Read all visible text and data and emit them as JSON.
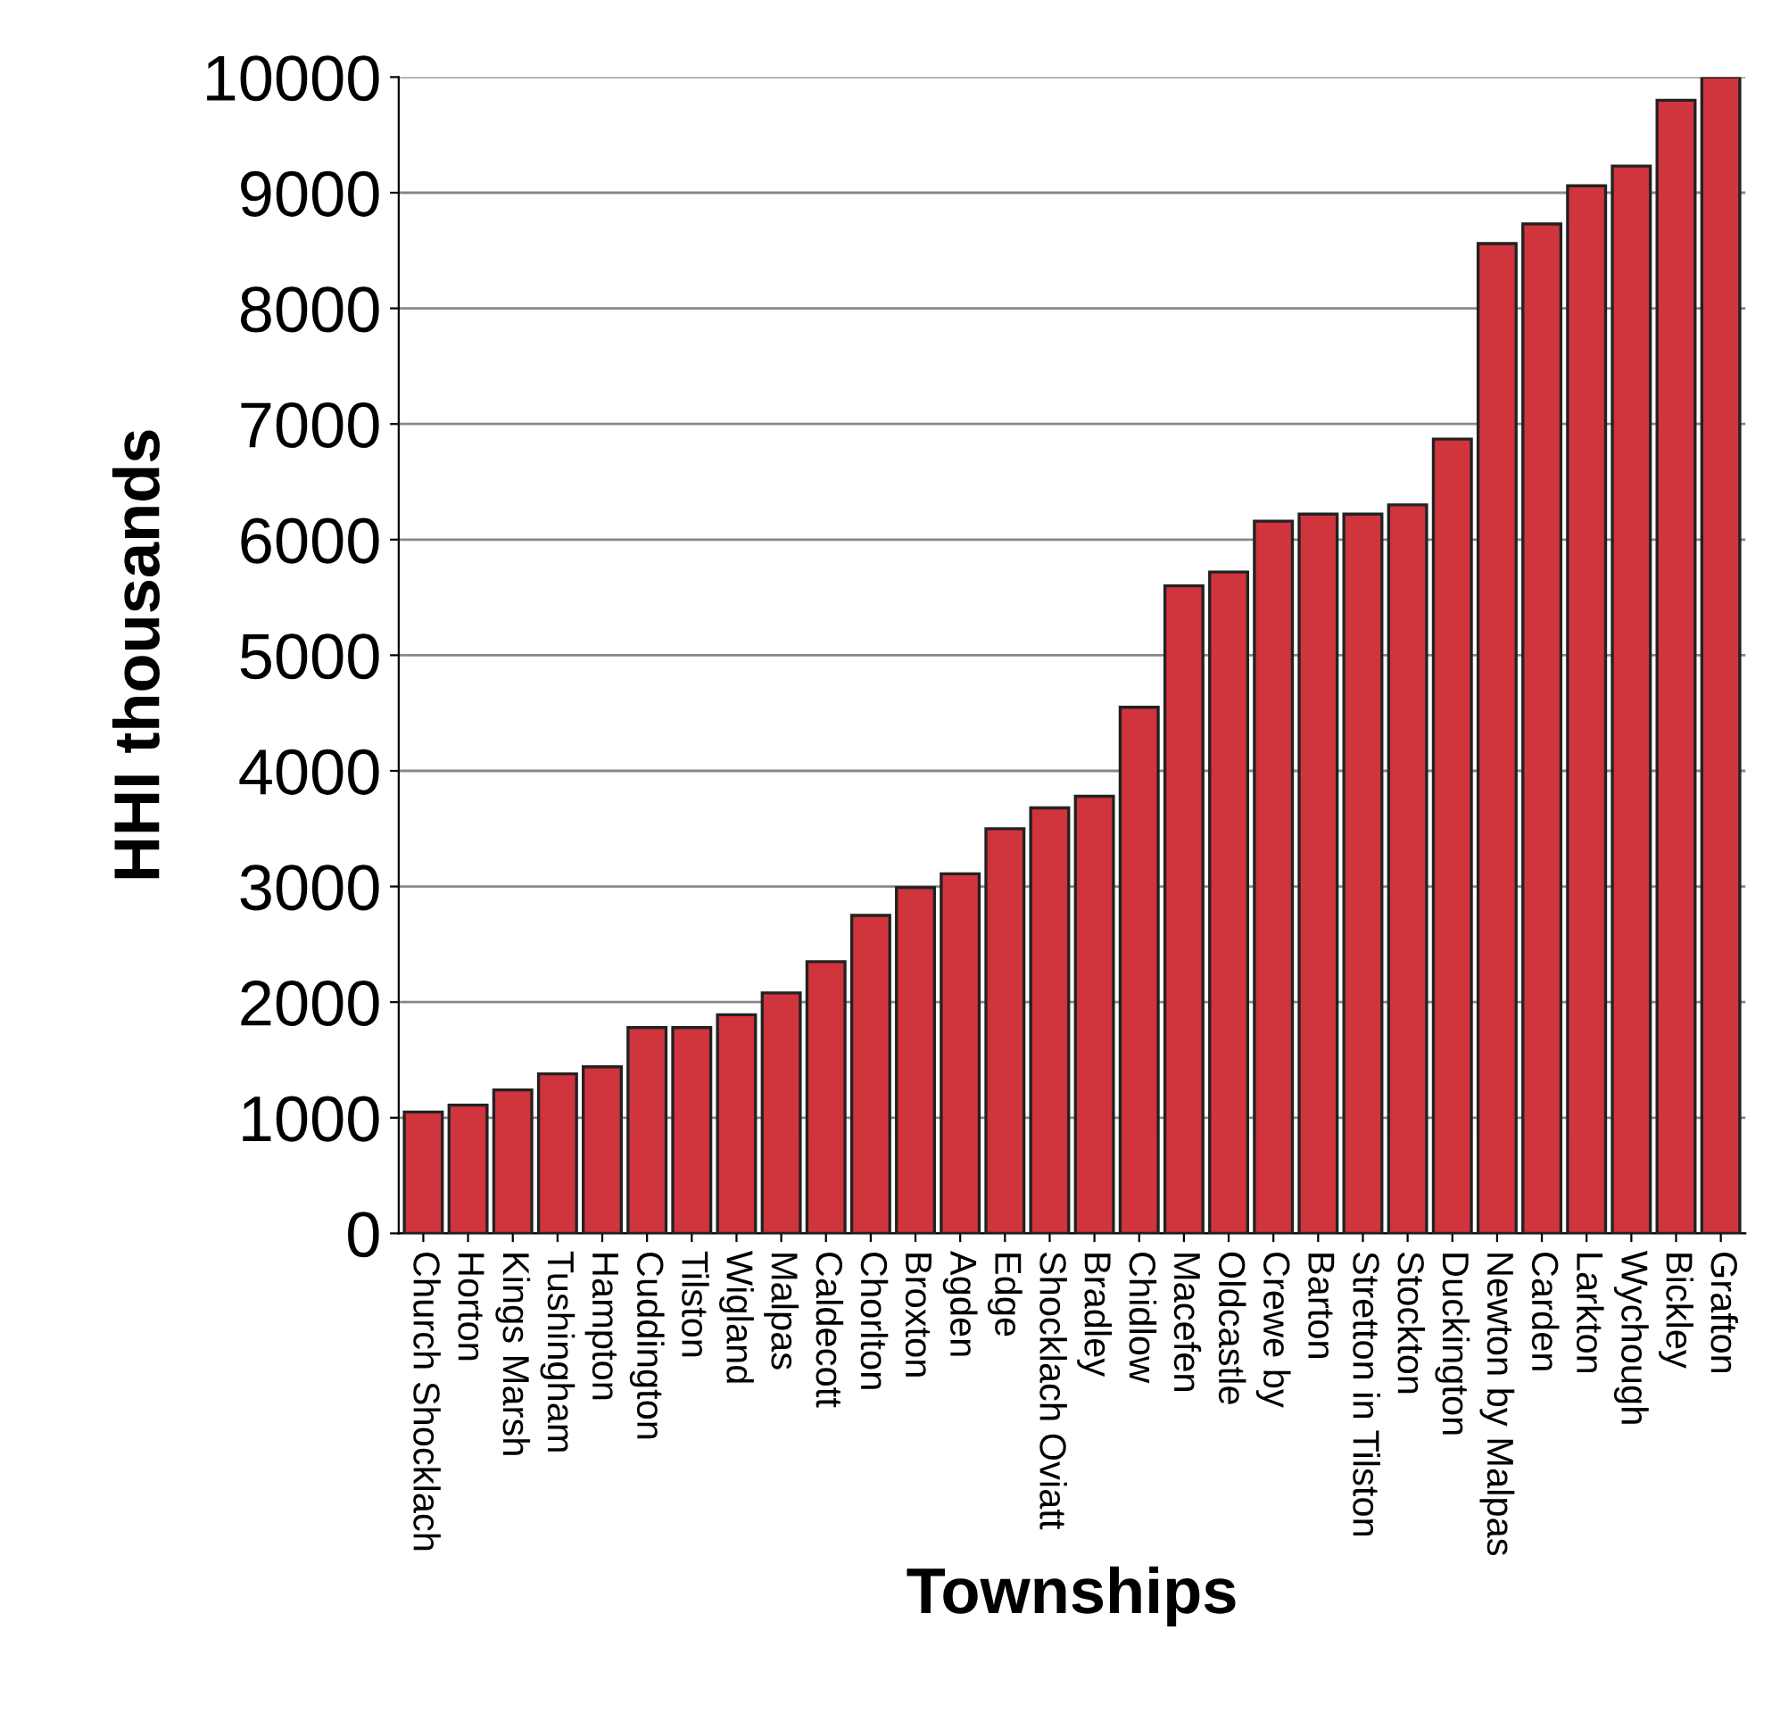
{
  "chart_data": {
    "type": "bar",
    "xlabel": "Townships",
    "ylabel": "HHI thousands",
    "categories": [
      "Church Shocklach",
      "Horton",
      "Kings Marsh",
      "Tushingham",
      "Hampton",
      "Cuddington",
      "Tilston",
      "Wigland",
      "Malpas",
      "Caldecott",
      "Chorlton",
      "Broxton",
      "Agden",
      "Edge",
      "Shocklach Oviatt",
      "Bradley",
      "Chidlow",
      "Macefen",
      "Oldcastle",
      "Crewe by",
      "Barton",
      "Stretton in Tilston",
      "Stockton",
      "Duckington",
      "Newton by Malpas",
      "Carden",
      "Larkton",
      "Wychough",
      "Bickley",
      "Grafton"
    ],
    "values": [
      1050,
      1110,
      1240,
      1380,
      1440,
      1780,
      1780,
      1890,
      2080,
      2350,
      2750,
      2990,
      3110,
      3500,
      3680,
      3780,
      4550,
      5600,
      5720,
      6160,
      6220,
      6220,
      6300,
      6870,
      8560,
      8730,
      9060,
      9230,
      9800,
      10000
    ],
    "color": "#d0343c",
    "ylim": [
      0,
      10000
    ],
    "yticks": [
      0,
      1000,
      2000,
      3000,
      4000,
      5000,
      6000,
      7000,
      8000,
      9000,
      10000
    ],
    "grid": "y"
  }
}
